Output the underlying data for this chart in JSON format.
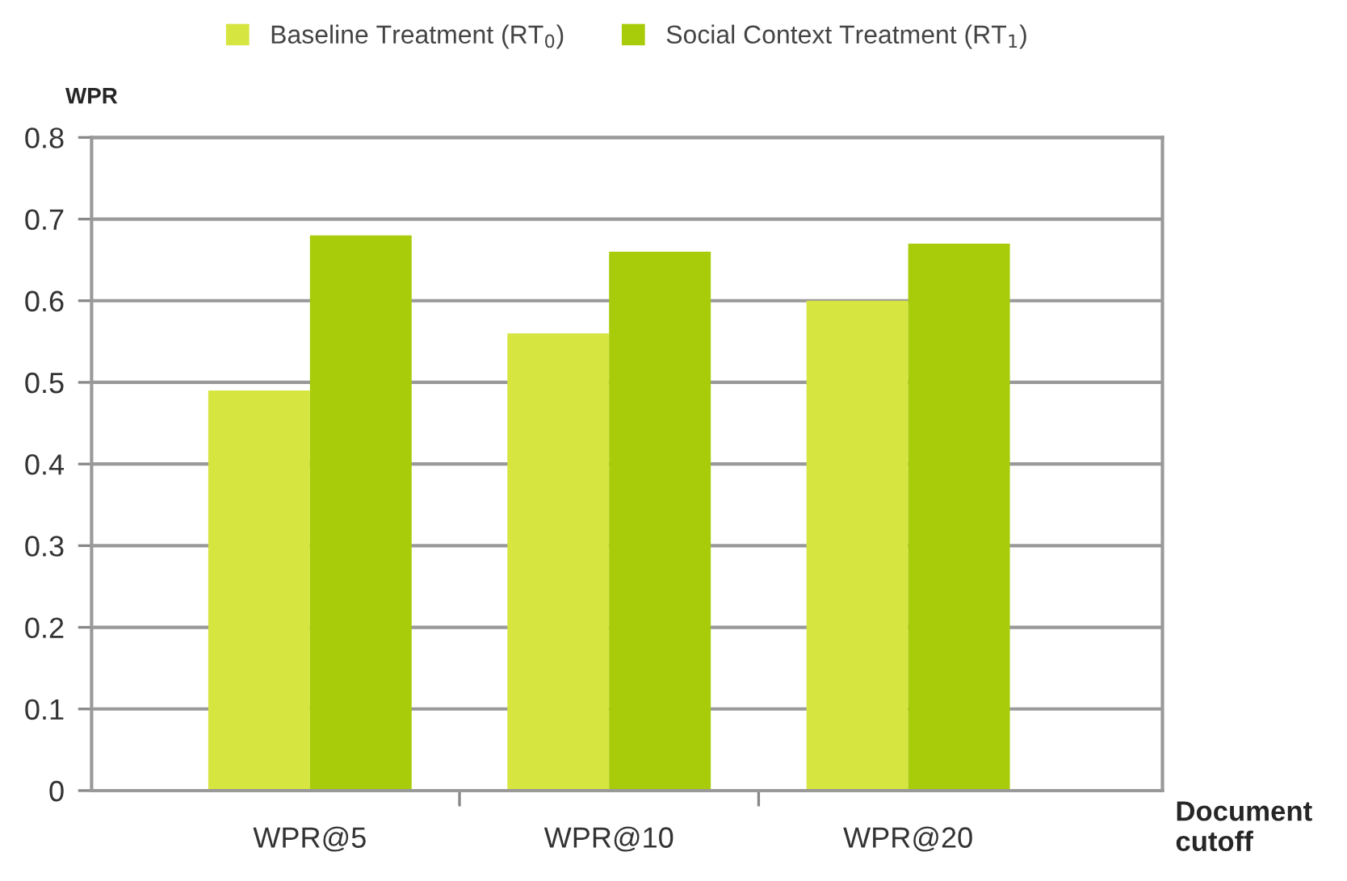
{
  "chart_data": {
    "type": "bar",
    "categories": [
      "WPR@5",
      "WPR@10",
      "WPR@20"
    ],
    "series": [
      {
        "name": "Baseline Treatment (RT$_{0}$)",
        "color": "#d6e540",
        "values": [
          0.49,
          0.56,
          0.6
        ]
      },
      {
        "name": "Social Context Treatment (RT$_{1}$)",
        "color": "#a8cc0a",
        "values": [
          0.68,
          0.66,
          0.67
        ]
      }
    ],
    "ylabel": "WPR",
    "xlabel": "Document cutoff",
    "ylim": [
      0,
      0.8
    ],
    "yticks": [
      0,
      0.1,
      0.2,
      0.3,
      0.4,
      0.5,
      0.6,
      0.7,
      0.8
    ],
    "grid": "y",
    "legend": "top"
  }
}
